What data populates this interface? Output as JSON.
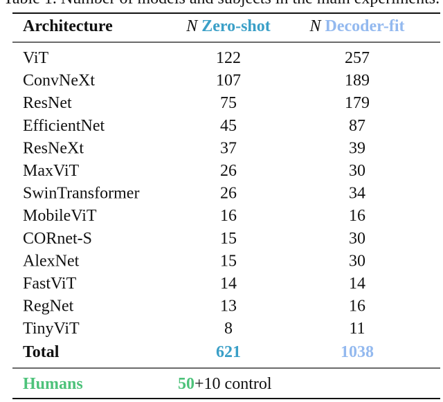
{
  "caption": "Table 1. Number of models and subjects in the main experiments.",
  "table": {
    "header": {
      "architecture": "Architecture",
      "zero_shot": {
        "prefix": "N",
        "label": "Zero-shot"
      },
      "decoder_fit": {
        "prefix": "N",
        "label": "Decoder-fit"
      }
    },
    "rows": [
      [
        "ViT",
        122,
        257
      ],
      [
        "ConvNeXt",
        107,
        189
      ],
      [
        "ResNet",
        75,
        179
      ],
      [
        "EfficientNet",
        45,
        87
      ],
      [
        "ResNeXt",
        37,
        39
      ],
      [
        "MaxViT",
        26,
        30
      ],
      [
        "SwinTransformer",
        26,
        34
      ],
      [
        "MobileViT",
        16,
        16
      ],
      [
        "CORnet-S",
        15,
        30
      ],
      [
        "AlexNet",
        15,
        30
      ],
      [
        "FastViT",
        14,
        14
      ],
      [
        "RegNet",
        13,
        16
      ],
      [
        "TinyViT",
        8,
        11
      ]
    ],
    "total": [
      "Total",
      621,
      1038
    ],
    "humans": {
      "label": "Humans",
      "zero_shot": 50,
      "extra": "+10 control"
    }
  }
}
